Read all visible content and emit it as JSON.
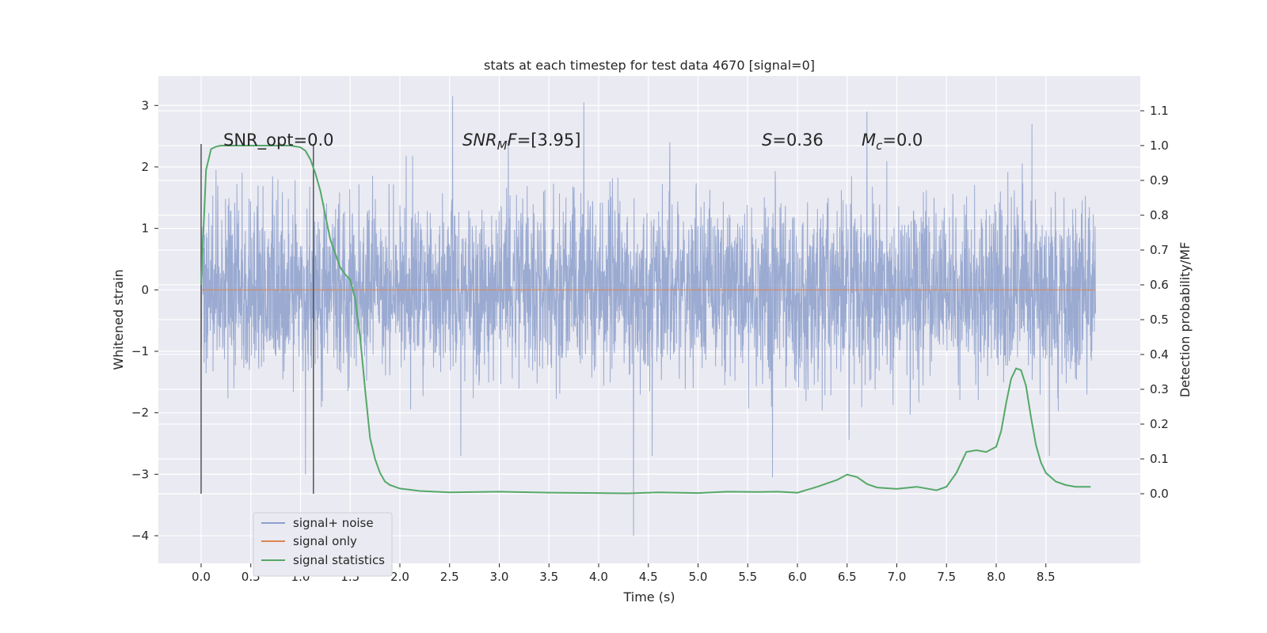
{
  "chart_data": {
    "type": "line",
    "title": "stats at each timestep for test data 4670 [signal=0]",
    "xlabel": "Time (s)",
    "ylabel": "Whitened strain",
    "ylabel_right": "Detection probability/MF",
    "xlim": [
      -0.43,
      9.45
    ],
    "ylim": [
      -4.45,
      3.48
    ],
    "ylim_right": [
      -0.2,
      1.2
    ],
    "x_ticks": [
      "0.0",
      "0.5",
      "1.0",
      "1.5",
      "2.0",
      "2.5",
      "3.0",
      "3.5",
      "4.0",
      "4.5",
      "5.0",
      "5.5",
      "6.0",
      "6.5",
      "7.0",
      "7.5",
      "8.0",
      "8.5"
    ],
    "y_ticks": [
      "3",
      "2",
      "1",
      "0",
      "−1",
      "−2",
      "−3",
      "−4"
    ],
    "y_ticks_right": [
      "1.1",
      "1.0",
      "0.9",
      "0.8",
      "0.7",
      "0.6",
      "0.5",
      "0.4",
      "0.3",
      "0.2",
      "0.1",
      "0.0"
    ],
    "annotations": {
      "snr_opt": "SNR_opt=0.0",
      "snr_mf_base": "SNR",
      "snr_mf_sub": "M",
      "snr_mf_italic": "F",
      "snr_mf_value": "=[3.95]",
      "s_symbol": "S",
      "s_value": "=0.36",
      "mc_symbol": "M",
      "mc_sub": "c",
      "mc_value": "=0.0"
    },
    "vertical_markers": [
      0.0,
      1.13
    ],
    "legend": {
      "placement": "lower-left",
      "entries": [
        "signal+ noise",
        "signal only",
        "signal statistics"
      ]
    },
    "series": [
      {
        "name": "signal+ noise",
        "axis": "left",
        "color": "#8c9fcb",
        "description_envelope": {
          "x_range": [
            0.0,
            9.0
          ],
          "typical_range": [
            -1.6,
            1.6
          ],
          "notable_peaks": [
            {
              "x": 2.53,
              "y": 3.15
            },
            {
              "x": 3.85,
              "y": 3.05
            },
            {
              "x": 6.7,
              "y": 2.9
            },
            {
              "x": 4.35,
              "y": -4.0
            },
            {
              "x": 1.05,
              "y": -3.0
            },
            {
              "x": 5.75,
              "y": -3.05
            }
          ]
        }
      },
      {
        "name": "signal only",
        "axis": "left",
        "color": "#dd8452",
        "x": [
          0.0,
          9.0
        ],
        "y": [
          0.0,
          0.0
        ]
      },
      {
        "name": "signal statistics",
        "axis": "right",
        "color": "#55a868",
        "x": [
          0.0,
          0.05,
          0.1,
          0.15,
          0.2,
          0.3,
          0.5,
          0.7,
          0.9,
          1.0,
          1.05,
          1.1,
          1.15,
          1.2,
          1.25,
          1.3,
          1.35,
          1.4,
          1.45,
          1.5,
          1.55,
          1.6,
          1.65,
          1.7,
          1.75,
          1.8,
          1.85,
          1.9,
          2.0,
          2.2,
          2.5,
          3.0,
          3.5,
          4.0,
          4.3,
          4.6,
          5.0,
          5.3,
          5.6,
          5.8,
          6.0,
          6.2,
          6.4,
          6.5,
          6.6,
          6.7,
          6.8,
          7.0,
          7.2,
          7.4,
          7.5,
          7.6,
          7.7,
          7.8,
          7.9,
          8.0,
          8.05,
          8.1,
          8.15,
          8.2,
          8.25,
          8.3,
          8.35,
          8.4,
          8.45,
          8.5,
          8.6,
          8.7,
          8.8,
          8.95
        ],
        "y": [
          0.6,
          0.93,
          0.99,
          0.997,
          1.0,
          1.0,
          1.0,
          1.0,
          1.0,
          0.995,
          0.985,
          0.96,
          0.92,
          0.87,
          0.8,
          0.73,
          0.69,
          0.65,
          0.63,
          0.615,
          0.56,
          0.45,
          0.3,
          0.16,
          0.1,
          0.06,
          0.035,
          0.025,
          0.015,
          0.008,
          0.004,
          0.006,
          0.003,
          0.002,
          0.001,
          0.004,
          0.002,
          0.006,
          0.005,
          0.006,
          0.003,
          0.02,
          0.04,
          0.055,
          0.048,
          0.028,
          0.018,
          0.014,
          0.02,
          0.01,
          0.02,
          0.06,
          0.12,
          0.125,
          0.12,
          0.135,
          0.18,
          0.26,
          0.33,
          0.36,
          0.355,
          0.31,
          0.22,
          0.14,
          0.09,
          0.06,
          0.035,
          0.025,
          0.02,
          0.02
        ]
      }
    ]
  }
}
